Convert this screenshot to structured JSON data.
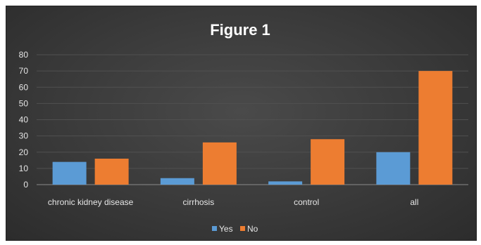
{
  "chart_data": {
    "type": "bar",
    "title": "Figure 1",
    "categories": [
      "chronic kidney disease",
      "cirrhosis",
      "control",
      "all"
    ],
    "series": [
      {
        "name": "Yes",
        "color": "#5b9bd5",
        "values": [
          14,
          4,
          2,
          20
        ]
      },
      {
        "name": "No",
        "color": "#ed7d31",
        "values": [
          16,
          26,
          28,
          70
        ]
      }
    ],
    "ylim": [
      0,
      80
    ],
    "yticks": [
      0,
      10,
      20,
      30,
      40,
      50,
      60,
      70,
      80
    ],
    "grid": true,
    "legend_position": "bottom"
  }
}
